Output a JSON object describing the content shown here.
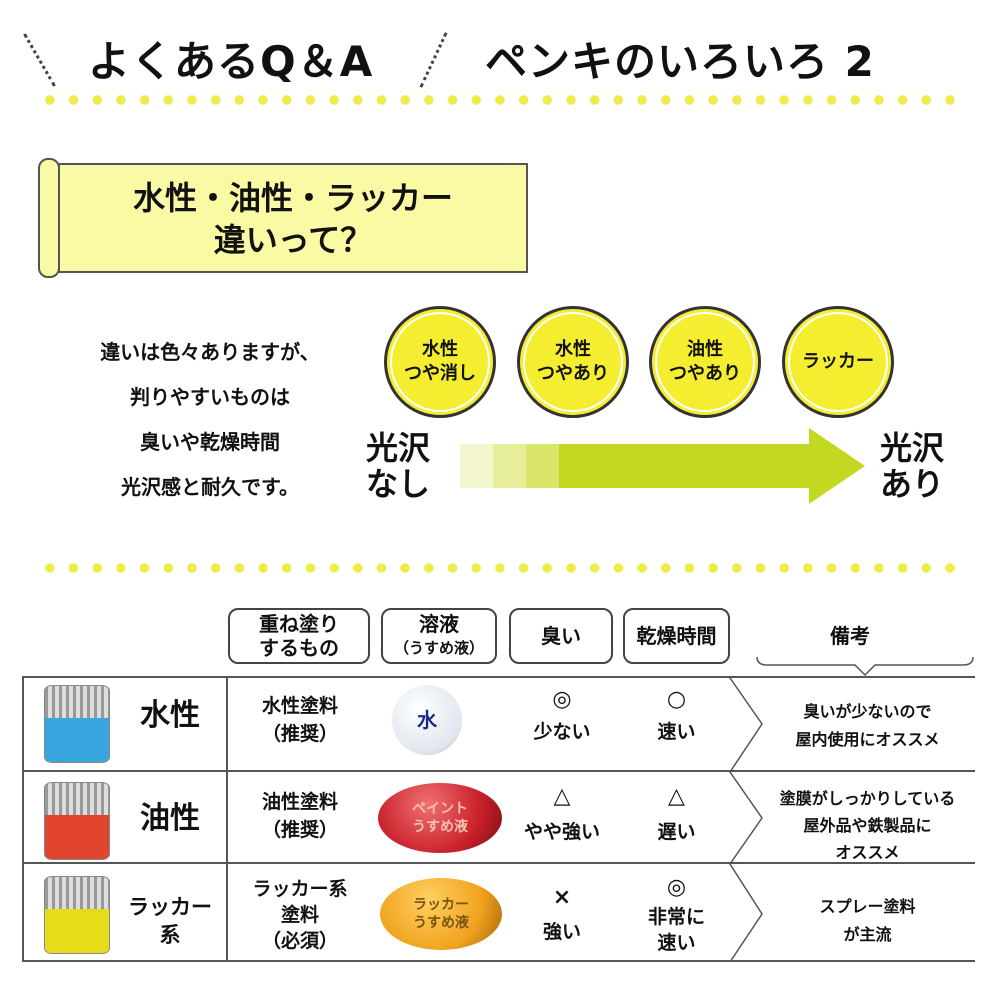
{
  "header": {
    "left_title": "よくあるQ＆A",
    "right_title": "ペンキのいろいろ 2"
  },
  "banner": {
    "line1": "水性・油性・ラッカー",
    "line2": "違いって？"
  },
  "intro": {
    "lines": [
      "違いは色々ありますが、",
      "判りやすいものは",
      "臭いや乾燥時間",
      "光沢感と耐久です。"
    ]
  },
  "gloss_scale": {
    "start_label": "光沢\nなし",
    "end_label": "光沢\nあり",
    "start_lines": [
      "光沢",
      "なし"
    ],
    "end_lines": [
      "光沢",
      "あり"
    ],
    "types": [
      {
        "line1": "水性",
        "line2": "つや消し"
      },
      {
        "line1": "水性",
        "line2": "つやあり"
      },
      {
        "line1": "油性",
        "line2": "つやあり"
      },
      {
        "line1": "ラッカー",
        "line2": ""
      }
    ],
    "arrow_color": "#c5d821",
    "circle_color": "#f5ee30"
  },
  "table": {
    "headers": {
      "recoat": [
        "重ね塗り",
        "するもの"
      ],
      "thinner": [
        "溶液",
        "（うすめ液）"
      ],
      "smell": "臭い",
      "dry": "乾燥時間",
      "notes": "備考"
    },
    "rows": [
      {
        "name": "水性",
        "liquid_color": "#3aa6e0",
        "recoat": [
          "水性塗料",
          "（推奨）"
        ],
        "thinner": [
          "水"
        ],
        "thinner_color": "#eef3f8",
        "smell_mark": "◎",
        "smell": "少ない",
        "dry_mark": "○",
        "dry": [
          "速い"
        ],
        "notes": [
          "臭いが少ないので",
          "屋内使用にオススメ"
        ]
      },
      {
        "name": "油性",
        "liquid_color": "#e2452e",
        "recoat": [
          "油性塗料",
          "（推奨）"
        ],
        "thinner": [
          "ペイント",
          "うすめ液"
        ],
        "thinner_color": "#c8202a",
        "smell_mark": "△",
        "smell": "やや強い",
        "dry_mark": "△",
        "dry": [
          "遅い"
        ],
        "notes": [
          "塗膜がしっかりしている",
          "屋外品や鉄製品に",
          "オススメ"
        ]
      },
      {
        "name": "ラッカー\n系",
        "name_lines": [
          "ラッカー",
          "系"
        ],
        "liquid_color": "#e8dc1a",
        "recoat": [
          "ラッカー系",
          "塗料",
          "（必須）"
        ],
        "thinner": [
          "ラッカー",
          "うすめ液"
        ],
        "thinner_color": "#f0a21e",
        "smell_mark": "×",
        "smell": "強い",
        "dry_mark": "◎",
        "dry": [
          "非常に",
          "速い"
        ],
        "notes": [
          "スプレー塗料",
          "が主流"
        ]
      }
    ]
  }
}
